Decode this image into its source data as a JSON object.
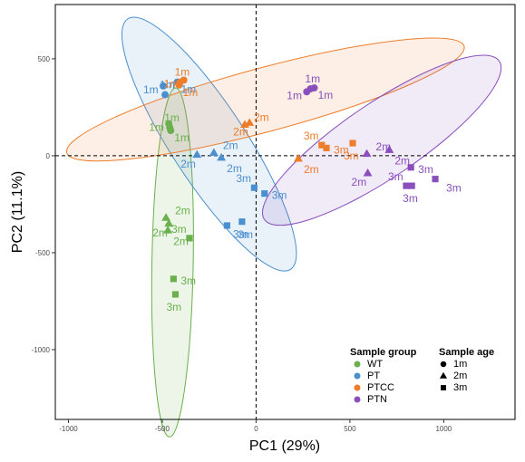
{
  "chart_data": {
    "type": "scatter",
    "title": "",
    "xlabel": "PC1 (29%)",
    "ylabel": "PC2 (11.1%)",
    "xlim": [
      -1070,
      1380
    ],
    "ylim": [
      -1360,
      780
    ],
    "x_ticks": [
      -1000,
      -500,
      0,
      500,
      1000
    ],
    "y_ticks": [
      500,
      0,
      -500,
      -1000
    ],
    "grid": false,
    "reference_lines": {
      "x": 0,
      "y": 0,
      "style": "dashed"
    },
    "colors": {
      "WT": "#6ab04c",
      "PT": "#4a8fcf",
      "PTCC": "#ee7d2a",
      "PTN": "#8a4fbd"
    },
    "legend": {
      "placement": "bottom-right",
      "group_title": "Sample group",
      "groups": [
        "WT",
        "PT",
        "PTCC",
        "PTN"
      ],
      "age_title": "Sample age",
      "ages": [
        {
          "label": "1m",
          "shape": "circle"
        },
        {
          "label": "2m",
          "shape": "triangle"
        },
        {
          "label": "3m",
          "shape": "square"
        }
      ]
    },
    "ellipses": [
      {
        "group": "WT",
        "cx": -445,
        "cy": -550,
        "rx": 900,
        "ry": 110,
        "angle_deg": 91
      },
      {
        "group": "PT",
        "cx": -250,
        "cy": 60,
        "rx": 770,
        "ry": 200,
        "angle_deg": 57
      },
      {
        "group": "PTCC",
        "cx": 50,
        "cy": 290,
        "rx": 1060,
        "ry": 170,
        "angle_deg": -15
      },
      {
        "group": "PTN",
        "cx": 670,
        "cy": 80,
        "rx": 730,
        "ry": 200,
        "angle_deg": -34
      }
    ],
    "series": [
      {
        "name": "WT",
        "points": [
          {
            "x": -465,
            "y": 165,
            "age": "1m",
            "label": "1m"
          },
          {
            "x": -460,
            "y": 145,
            "age": "1m",
            "label": "1m"
          },
          {
            "x": -455,
            "y": 130,
            "age": "1m",
            "label": "1m"
          },
          {
            "x": -480,
            "y": -320,
            "age": "2m",
            "label": "2m"
          },
          {
            "x": -465,
            "y": -350,
            "age": "2m",
            "label": "2m"
          },
          {
            "x": -470,
            "y": -385,
            "age": "2m",
            "label": "2m"
          },
          {
            "x": -355,
            "y": -425,
            "age": "3m",
            "label": "3m"
          },
          {
            "x": -440,
            "y": -635,
            "age": "3m",
            "label": "3m"
          },
          {
            "x": -430,
            "y": -715,
            "age": "3m",
            "label": "3m"
          }
        ]
      },
      {
        "name": "PT",
        "points": [
          {
            "x": -495,
            "y": 360,
            "age": "1m",
            "label": "1m"
          },
          {
            "x": -485,
            "y": 315,
            "age": "1m",
            "label": "1m"
          },
          {
            "x": -420,
            "y": 380,
            "age": "1m",
            "label": "1m"
          },
          {
            "x": -225,
            "y": 15,
            "age": "2m",
            "label": "2m"
          },
          {
            "x": -315,
            "y": 5,
            "age": "2m",
            "label": "2m"
          },
          {
            "x": -185,
            "y": -10,
            "age": "2m",
            "label": "2m"
          },
          {
            "x": -10,
            "y": -165,
            "age": "3m",
            "label": "3m"
          },
          {
            "x": 45,
            "y": -195,
            "age": "3m",
            "label": "3m"
          },
          {
            "x": -75,
            "y": -340,
            "age": "3m",
            "label": "3m"
          },
          {
            "x": -155,
            "y": -360,
            "age": "3m",
            "label": "3m"
          }
        ]
      },
      {
        "name": "PTCC",
        "points": [
          {
            "x": -385,
            "y": 390,
            "age": "1m",
            "label": "1m"
          },
          {
            "x": -405,
            "y": 380,
            "age": "1m",
            "label": "1m"
          },
          {
            "x": -410,
            "y": 365,
            "age": "1m",
            "label": "1m"
          },
          {
            "x": -60,
            "y": 160,
            "age": "2m",
            "label": "2m"
          },
          {
            "x": -35,
            "y": 170,
            "age": "2m",
            "label": "2m"
          },
          {
            "x": 225,
            "y": -15,
            "age": "2m",
            "label": "2m"
          },
          {
            "x": 350,
            "y": 55,
            "age": "3m",
            "label": "3m"
          },
          {
            "x": 375,
            "y": 40,
            "age": "3m",
            "label": "3m"
          },
          {
            "x": 515,
            "y": 65,
            "age": "3m",
            "label": "3m"
          }
        ]
      },
      {
        "name": "PTN",
        "points": [
          {
            "x": 270,
            "y": 330,
            "age": "1m",
            "label": "1m"
          },
          {
            "x": 290,
            "y": 345,
            "age": "1m",
            "label": "1m"
          },
          {
            "x": 310,
            "y": 350,
            "age": "1m",
            "label": "1m"
          },
          {
            "x": 590,
            "y": 10,
            "age": "2m",
            "label": "2m"
          },
          {
            "x": 595,
            "y": -90,
            "age": "2m",
            "label": "2m"
          },
          {
            "x": 710,
            "y": 30,
            "age": "2m",
            "label": "2m"
          },
          {
            "x": 800,
            "y": -155,
            "age": "3m",
            "label": "3m"
          },
          {
            "x": 825,
            "y": -60,
            "age": "3m",
            "label": "3m"
          },
          {
            "x": 830,
            "y": -155,
            "age": "3m",
            "label": "3m"
          },
          {
            "x": 955,
            "y": -120,
            "age": "3m",
            "label": "3m"
          }
        ]
      }
    ]
  }
}
